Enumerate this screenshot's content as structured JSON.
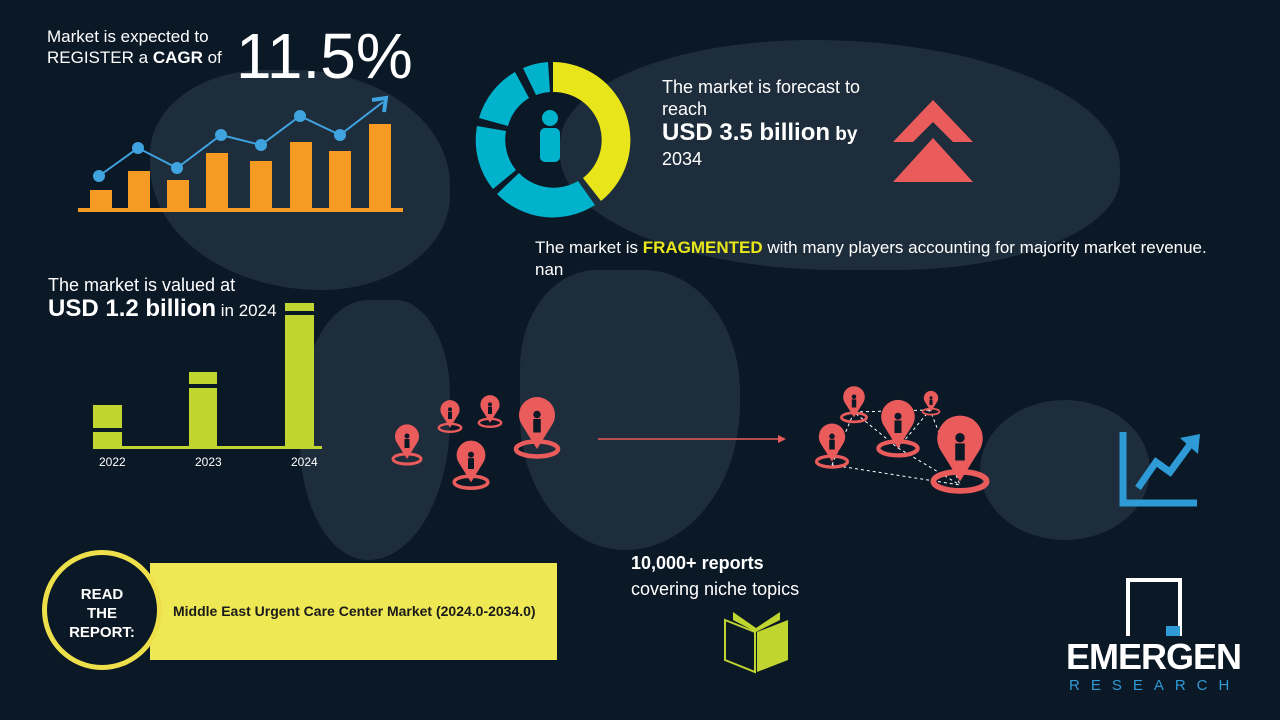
{
  "cagr": {
    "line1": "Market is expected to",
    "line2_a": "REGISTER a ",
    "line2_b": "CAGR",
    "line2_c": " of",
    "value": "11.5%"
  },
  "forecast": {
    "line1": "The market is forecast to",
    "line2": "reach",
    "value": "USD 3.5 billion",
    "by": " by",
    "year": "2034"
  },
  "fragmented": {
    "a": "The market is ",
    "b": "FRAGMENTED",
    "c": " with many players accounting for majority market revenue. nan"
  },
  "valued": {
    "line1": "The market is valued at",
    "value": "USD 1.2 billion",
    "suffix": " in 2024"
  },
  "year_bars": {
    "labels": [
      "2022",
      "2023",
      "2024"
    ]
  },
  "report": {
    "read": "READ",
    "the": "THE",
    "report": "REPORT:",
    "title": "Middle East Urgent Care Center Market (2024.0-2034.0)"
  },
  "reports_count": {
    "line1": "10,000+ reports",
    "line2": "covering niche topics"
  },
  "logo": {
    "name": "EMERGEN",
    "sub": "RESEARCH"
  },
  "colors": {
    "background": "#0b1826",
    "orange": "#f59a23",
    "blue": "#3fa3e0",
    "yellow": "#e8e61a",
    "cyan": "#00b2cc",
    "red": "#ea5b5b",
    "green": "#c0d530",
    "banner": "#ede853"
  },
  "icons": [
    "person-icon",
    "double-chevron-up-icon",
    "map-pin-icon",
    "trend-up-icon",
    "book-icon"
  ]
}
